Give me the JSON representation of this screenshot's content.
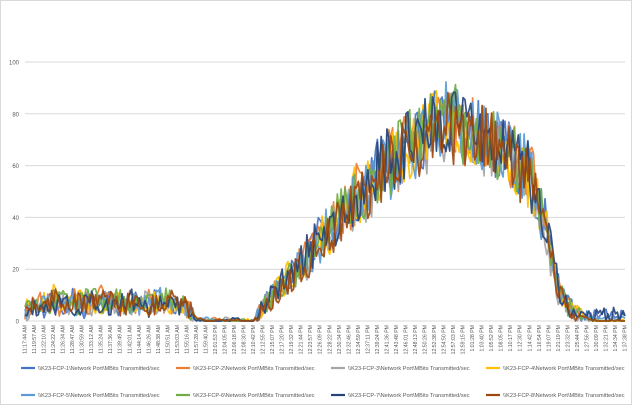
{
  "chart_data": {
    "type": "line",
    "title": "",
    "xlabel": "",
    "ylabel": "",
    "ylim": [
      0,
      100
    ],
    "yticks": [
      0,
      20,
      40,
      60,
      80,
      100
    ],
    "grid": "horizontal",
    "legend_position": "bottom",
    "x_tick_labels": [
      "11:17:44 AM",
      "11:19:57 AM",
      "11:22:10 AM",
      "11:24:22 AM",
      "11:26:34 AM",
      "11:28:47 AM",
      "11:30:59 AM",
      "11:33:12 AM",
      "11:35:24 AM",
      "11:37:36 AM",
      "11:39:49 AM",
      "11:42:01 AM",
      "11:44:14 AM",
      "11:46:26 AM",
      "11:48:38 AM",
      "11:50:51 AM",
      "11:53:03 AM",
      "11:55:16 AM",
      "11:57:28 AM",
      "11:59:40 AM",
      "12:01:53 PM",
      "12:04:05 PM",
      "12:06:18 PM",
      "12:08:30 PM",
      "12:10:42 PM",
      "12:12:55 PM",
      "12:15:07 PM",
      "12:17:20 PM",
      "12:19:32 PM",
      "12:21:44 PM",
      "12:23:57 PM",
      "12:26:09 PM",
      "12:28:22 PM",
      "12:30:34 PM",
      "12:32:46 PM",
      "12:34:59 PM",
      "12:37:11 PM",
      "12:39:24 PM",
      "12:41:36 PM",
      "12:43:48 PM",
      "12:46:01 PM",
      "12:48:13 PM",
      "12:50:26 PM",
      "12:52:38 PM",
      "12:54:50 PM",
      "12:57:03 PM",
      "12:59:15 PM",
      "1:01:28 PM",
      "1:03:40 PM",
      "1:05:52 PM",
      "1:08:05 PM",
      "1:10:17 PM",
      "1:12:30 PM",
      "1:14:42 PM",
      "1:16:54 PM",
      "1:19:07 PM",
      "1:21:19 PM",
      "1:23:32 PM",
      "1:25:44 PM",
      "1:27:56 PM",
      "1:30:09 PM",
      "1:32:21 PM",
      "1:34:34 PM",
      "1:37:38 PM"
    ],
    "series": [
      {
        "name": "\\\\K23-FCP-1\\Network Port\\MBits Transmitted/sec",
        "color": "#4472C4",
        "values": [
          3,
          7,
          5,
          9,
          6,
          10,
          4,
          8,
          6,
          9,
          5,
          7,
          8,
          6,
          9,
          5,
          7,
          4,
          1,
          0,
          0,
          0,
          1,
          0,
          0,
          6,
          11,
          14,
          18,
          22,
          26,
          33,
          37,
          40,
          44,
          48,
          53,
          57,
          60,
          64,
          66,
          70,
          72,
          76,
          80,
          78,
          76,
          72,
          74,
          70,
          68,
          66,
          62,
          57,
          45,
          33,
          14,
          6,
          3,
          2,
          2,
          2,
          2,
          2
        ]
      },
      {
        "name": "\\\\K23-FCP-2\\Network Port\\MBits Transmitted/sec",
        "color": "#ED7D31",
        "values": [
          4,
          6,
          8,
          7,
          5,
          9,
          8,
          6,
          10,
          7,
          6,
          8,
          5,
          9,
          7,
          6,
          8,
          5,
          1,
          0,
          1,
          0,
          0,
          0,
          0,
          7,
          10,
          15,
          17,
          23,
          25,
          31,
          36,
          42,
          45,
          50,
          52,
          58,
          61,
          63,
          68,
          69,
          74,
          75,
          82,
          79,
          74,
          73,
          70,
          72,
          66,
          64,
          61,
          58,
          44,
          30,
          12,
          5,
          2,
          1,
          0,
          0,
          0,
          0
        ]
      },
      {
        "name": "\\\\K23-FCP-3\\Network Port\\MBits Transmitted/sec",
        "color": "#A5A5A5",
        "values": [
          2,
          5,
          6,
          8,
          7,
          6,
          9,
          5,
          7,
          8,
          6,
          5,
          7,
          8,
          6,
          7,
          5,
          6,
          0,
          0,
          0,
          1,
          0,
          0,
          0,
          5,
          9,
          13,
          16,
          20,
          24,
          30,
          34,
          38,
          43,
          47,
          50,
          55,
          59,
          61,
          64,
          67,
          70,
          72,
          75,
          74,
          72,
          70,
          69,
          67,
          65,
          62,
          59,
          55,
          42,
          28,
          10,
          4,
          2,
          1,
          0,
          0,
          0,
          0
        ]
      },
      {
        "name": "\\\\K23-FCP-4\\Network Port\\MBits Transmitted/sec",
        "color": "#FFC000",
        "values": [
          5,
          8,
          7,
          10,
          6,
          8,
          9,
          7,
          5,
          8,
          7,
          6,
          9,
          7,
          8,
          6,
          7,
          5,
          1,
          0,
          0,
          0,
          0,
          1,
          0,
          6,
          10,
          14,
          19,
          21,
          27,
          32,
          35,
          41,
          46,
          49,
          54,
          56,
          62,
          65,
          67,
          71,
          73,
          78,
          77,
          76,
          73,
          71,
          71,
          68,
          67,
          63,
          60,
          56,
          43,
          31,
          11,
          5,
          3,
          1,
          0,
          0,
          0,
          0
        ]
      },
      {
        "name": "\\\\K23-FCP-5\\Network Port\\MBits Transmitted/sec",
        "color": "#5B9BD5",
        "values": [
          3,
          6,
          9,
          6,
          8,
          7,
          5,
          9,
          8,
          6,
          8,
          7,
          6,
          8,
          9,
          7,
          6,
          4,
          0,
          1,
          0,
          0,
          0,
          0,
          0,
          6,
          11,
          13,
          17,
          22,
          25,
          31,
          37,
          39,
          45,
          47,
          53,
          57,
          59,
          63,
          66,
          69,
          71,
          74,
          79,
          77,
          75,
          71,
          72,
          69,
          66,
          64,
          60,
          57,
          44,
          32,
          13,
          5,
          2,
          1,
          1,
          1,
          1,
          1
        ]
      },
      {
        "name": "\\\\K23-FCP-6\\Network Port\\MBits Transmitted/sec",
        "color": "#70AD47",
        "values": [
          4,
          7,
          6,
          8,
          9,
          6,
          7,
          10,
          6,
          7,
          9,
          6,
          7,
          6,
          8,
          9,
          7,
          5,
          1,
          0,
          0,
          0,
          0,
          0,
          0,
          7,
          9,
          14,
          18,
          21,
          26,
          32,
          36,
          40,
          44,
          50,
          52,
          56,
          60,
          65,
          68,
          70,
          72,
          77,
          84,
          80,
          74,
          73,
          73,
          70,
          67,
          65,
          61,
          58,
          45,
          34,
          12,
          6,
          3,
          1,
          0,
          0,
          0,
          0
        ]
      },
      {
        "name": "\\\\K23-FCP-7\\Network Port\\MBits Transmitted/sec",
        "color": "#264478",
        "values": [
          3,
          5,
          7,
          6,
          8,
          5,
          6,
          8,
          7,
          5,
          7,
          9,
          6,
          5,
          7,
          8,
          6,
          5,
          0,
          0,
          0,
          0,
          1,
          0,
          0,
          5,
          10,
          15,
          18,
          24,
          27,
          33,
          35,
          41,
          46,
          49,
          54,
          58,
          61,
          64,
          67,
          71,
          73,
          76,
          78,
          77,
          75,
          72,
          70,
          71,
          68,
          65,
          62,
          56,
          44,
          31,
          13,
          5,
          2,
          2,
          2,
          2,
          3,
          2
        ]
      },
      {
        "name": "\\\\K23-FCP-8\\Network Port\\MBits Transmitted/sec",
        "color": "#9E480E",
        "values": [
          5,
          7,
          6,
          9,
          7,
          8,
          6,
          7,
          9,
          8,
          5,
          7,
          8,
          6,
          7,
          9,
          8,
          6,
          1,
          0,
          0,
          0,
          0,
          0,
          0,
          6,
          9,
          13,
          16,
          21,
          24,
          29,
          34,
          39,
          43,
          47,
          51,
          54,
          58,
          62,
          64,
          68,
          70,
          73,
          76,
          74,
          71,
          69,
          70,
          67,
          64,
          62,
          58,
          54,
          41,
          29,
          11,
          4,
          2,
          1,
          0,
          0,
          0,
          0
        ]
      }
    ]
  }
}
